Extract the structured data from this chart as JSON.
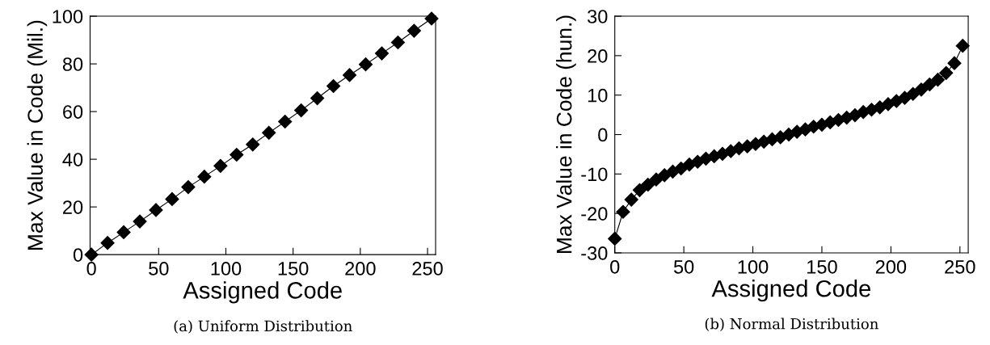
{
  "chart_data": [
    {
      "type": "line",
      "title": "(a) Uniform Distribution",
      "xlabel": "Assigned Code",
      "ylabel": "Max Value in Code (Mil.)",
      "x": [
        0,
        12,
        24,
        36,
        48,
        60,
        72,
        84,
        96,
        108,
        120,
        132,
        144,
        156,
        168,
        180,
        192,
        204,
        216,
        228,
        240,
        253
      ],
      "series": [
        {
          "color": "#000000",
          "values": [
            0,
            4.9,
            9.4,
            13.9,
            18.7,
            23.3,
            28.3,
            32.7,
            37.2,
            41.9,
            46.2,
            51.1,
            55.8,
            60.5,
            65.6,
            70.7,
            75.3,
            79.8,
            84.4,
            89.0,
            93.9,
            99.0
          ]
        }
      ],
      "xlim": [
        -1,
        256
      ],
      "ylim": [
        0,
        100
      ],
      "xticks": [
        0,
        50,
        100,
        150,
        200,
        250
      ],
      "yticks": [
        0,
        20,
        40,
        60,
        80,
        100
      ],
      "marker": "diamond",
      "line_style": "solid",
      "grid": false,
      "legend": false
    },
    {
      "type": "line",
      "title": "(b) Normal Distribution",
      "xlabel": "Assigned Code",
      "ylabel": "Max Value in Code (hun.)",
      "x": [
        0,
        6,
        12,
        18,
        24,
        30,
        36,
        42,
        48,
        54,
        60,
        66,
        72,
        78,
        84,
        90,
        96,
        102,
        108,
        114,
        120,
        126,
        132,
        138,
        144,
        150,
        156,
        162,
        168,
        174,
        180,
        186,
        192,
        198,
        204,
        210,
        216,
        222,
        228,
        234,
        240,
        246,
        252
      ],
      "series": [
        {
          "color": "#000000",
          "values": [
            -26.4,
            -19.6,
            -16.5,
            -14.1,
            -12.7,
            -11.4,
            -10.3,
            -9.4,
            -8.6,
            -7.6,
            -6.9,
            -6.1,
            -5.5,
            -4.9,
            -4.2,
            -3.5,
            -3.0,
            -2.4,
            -1.8,
            -1.2,
            -0.7,
            0.0,
            0.7,
            1.3,
            2.0,
            2.5,
            3.1,
            3.7,
            4.3,
            4.9,
            5.7,
            6.3,
            6.9,
            7.7,
            8.5,
            9.3,
            10.3,
            11.4,
            12.7,
            13.9,
            15.6,
            18.1,
            22.5
          ]
        }
      ],
      "xlim": [
        0,
        256
      ],
      "ylim": [
        -30,
        30
      ],
      "xticks": [
        0,
        50,
        100,
        150,
        200,
        250
      ],
      "yticks": [
        -30,
        -20,
        -10,
        0,
        10,
        20,
        30
      ],
      "marker": "diamond",
      "line_style": "solid",
      "grid": false,
      "legend": false
    }
  ]
}
